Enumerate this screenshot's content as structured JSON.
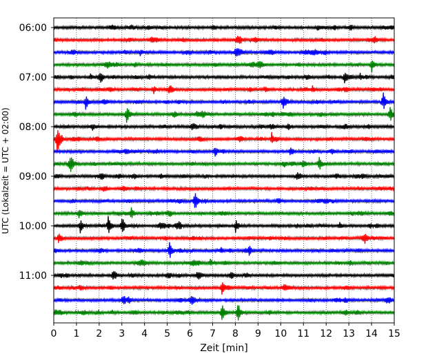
{
  "chart_data": {
    "type": "line",
    "title": "",
    "xlabel": "Zeit  [min]",
    "ylabel": "UTC (Lokalzeit = UTC + 02:00)",
    "xlim": [
      0,
      15
    ],
    "x_ticks": [
      "0",
      "1",
      "2",
      "3",
      "4",
      "5",
      "6",
      "7",
      "8",
      "9",
      "10",
      "11",
      "12",
      "13",
      "14",
      "15"
    ],
    "y_ticks": [
      "06:00",
      "07:00",
      "08:00",
      "09:00",
      "10:00",
      "11:00"
    ],
    "trace_interval_min": 15,
    "grid": "vertical dotted",
    "legend": "none",
    "color_cycle": [
      "#000000",
      "#ff0000",
      "#0000ff",
      "#008000"
    ],
    "traces": [
      {
        "time": "06:00",
        "events": [
          [
            11.6,
            0.5
          ]
        ]
      },
      {
        "time": "06:15",
        "events": [
          [
            4.5,
            0.4
          ],
          [
            8.2,
            0.5
          ]
        ]
      },
      {
        "time": "06:30",
        "events": [
          [
            3.8,
            0.5
          ],
          [
            8.0,
            0.6
          ]
        ]
      },
      {
        "time": "06:45",
        "events": [
          [
            14.0,
            1.2
          ]
        ]
      },
      {
        "time": "07:00",
        "events": [
          [
            1.6,
            0.5
          ],
          [
            4.2,
            0.4
          ],
          [
            12.8,
            1.1
          ],
          [
            13.5,
            0.5
          ]
        ]
      },
      {
        "time": "07:15",
        "events": [
          [
            4.4,
            0.7
          ],
          [
            9.3,
            0.5
          ],
          [
            11.4,
            0.5
          ]
        ]
      },
      {
        "time": "07:30",
        "events": [
          [
            1.4,
            1.3
          ],
          [
            10.1,
            1.3
          ],
          [
            14.5,
            1.8
          ]
        ]
      },
      {
        "time": "07:45",
        "events": [
          [
            3.2,
            1.5
          ],
          [
            14.8,
            1.6
          ]
        ]
      },
      {
        "time": "08:00",
        "events": [
          [
            1.7,
            0.6
          ],
          [
            7.3,
            0.5
          ],
          [
            10.3,
            0.6
          ]
        ]
      },
      {
        "time": "08:15",
        "events": [
          [
            0.15,
            2.8
          ],
          [
            9.6,
            1.0
          ]
        ]
      },
      {
        "time": "08:30",
        "events": [
          [
            7.1,
            1.1
          ],
          [
            10.4,
            0.5
          ]
        ]
      },
      {
        "time": "08:45",
        "events": [
          [
            0.7,
            1.3
          ],
          [
            11.7,
            1.3
          ]
        ]
      },
      {
        "time": "09:00",
        "events": [
          [
            4.7,
            0.4
          ],
          [
            10.7,
            0.7
          ]
        ]
      },
      {
        "time": "09:15",
        "events": []
      },
      {
        "time": "09:30",
        "events": [
          [
            6.2,
            1.6
          ]
        ]
      },
      {
        "time": "09:45",
        "events": [
          [
            1.1,
            1.0
          ],
          [
            3.4,
            1.1
          ]
        ]
      },
      {
        "time": "10:00",
        "events": [
          [
            1.15,
            1.4
          ],
          [
            2.4,
            1.6
          ],
          [
            3.0,
            1.4
          ],
          [
            5.5,
            1.1
          ],
          [
            8.0,
            1.1
          ],
          [
            12.6,
            0.5
          ]
        ]
      },
      {
        "time": "10:15",
        "events": [
          [
            0.2,
            0.5
          ],
          [
            13.7,
            0.5
          ]
        ]
      },
      {
        "time": "10:30",
        "events": [
          [
            5.1,
            1.5
          ],
          [
            8.6,
            0.9
          ]
        ]
      },
      {
        "time": "10:45",
        "events": [
          [
            6.9,
            0.6
          ]
        ]
      },
      {
        "time": "11:00",
        "events": [
          [
            2.6,
            0.7
          ],
          [
            7.8,
            0.4
          ]
        ]
      },
      {
        "time": "11:15",
        "events": [
          [
            7.4,
            1.2
          ]
        ]
      },
      {
        "time": "11:30",
        "events": [
          [
            3.3,
            0.4
          ]
        ]
      },
      {
        "time": "11:45",
        "events": [
          [
            7.4,
            1.3
          ],
          [
            8.1,
            1.5
          ]
        ]
      }
    ]
  }
}
